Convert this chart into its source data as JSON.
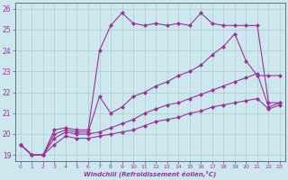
{
  "xlabel": "Windchill (Refroidissement éolien,°C)",
  "bg_color": "#cce8ee",
  "line_color": "#993399",
  "grid_color": "#aacccc",
  "ylim": [
    18.7,
    26.3
  ],
  "xlim": [
    -0.5,
    23.5
  ],
  "yticks": [
    19,
    20,
    21,
    22,
    23,
    24,
    25,
    26
  ],
  "xticks": [
    0,
    1,
    2,
    3,
    4,
    5,
    6,
    7,
    8,
    9,
    10,
    11,
    12,
    13,
    14,
    15,
    16,
    17,
    18,
    19,
    20,
    21,
    22,
    23
  ],
  "series": [
    {
      "x": [
        0,
        1,
        2,
        3,
        4,
        5,
        6,
        7,
        8,
        9,
        10,
        11,
        12,
        13,
        14,
        15,
        16,
        17,
        18,
        19,
        20,
        21,
        22,
        23
      ],
      "y": [
        19.5,
        19.0,
        19.0,
        20.2,
        20.3,
        20.2,
        20.2,
        24.0,
        25.2,
        25.8,
        25.3,
        25.2,
        25.3,
        25.2,
        25.3,
        25.2,
        25.8,
        25.3,
        25.2,
        25.2,
        25.2,
        25.2,
        21.5,
        21.5
      ]
    },
    {
      "x": [
        0,
        1,
        2,
        3,
        4,
        5,
        6,
        7,
        8,
        9,
        10,
        11,
        12,
        13,
        14,
        15,
        16,
        17,
        18,
        19,
        20,
        21,
        22,
        23
      ],
      "y": [
        19.5,
        19.0,
        19.0,
        20.0,
        20.2,
        20.1,
        20.1,
        21.8,
        21.0,
        21.3,
        21.8,
        22.0,
        22.3,
        22.5,
        22.8,
        23.0,
        23.3,
        23.8,
        24.2,
        24.8,
        23.5,
        22.8,
        22.8,
        22.8
      ]
    },
    {
      "x": [
        0,
        1,
        2,
        3,
        4,
        5,
        6,
        7,
        8,
        9,
        10,
        11,
        12,
        13,
        14,
        15,
        16,
        17,
        18,
        19,
        20,
        21,
        22,
        23
      ],
      "y": [
        19.5,
        19.0,
        19.0,
        19.8,
        20.1,
        20.0,
        20.0,
        20.1,
        20.3,
        20.5,
        20.7,
        21.0,
        21.2,
        21.4,
        21.5,
        21.7,
        21.9,
        22.1,
        22.3,
        22.5,
        22.7,
        22.9,
        21.3,
        21.5
      ]
    },
    {
      "x": [
        0,
        1,
        2,
        3,
        4,
        5,
        6,
        7,
        8,
        9,
        10,
        11,
        12,
        13,
        14,
        15,
        16,
        17,
        18,
        19,
        20,
        21,
        22,
        23
      ],
      "y": [
        19.5,
        19.0,
        19.0,
        19.5,
        19.9,
        19.8,
        19.8,
        19.9,
        20.0,
        20.1,
        20.2,
        20.4,
        20.6,
        20.7,
        20.8,
        21.0,
        21.1,
        21.3,
        21.4,
        21.5,
        21.6,
        21.7,
        21.2,
        21.4
      ]
    }
  ]
}
